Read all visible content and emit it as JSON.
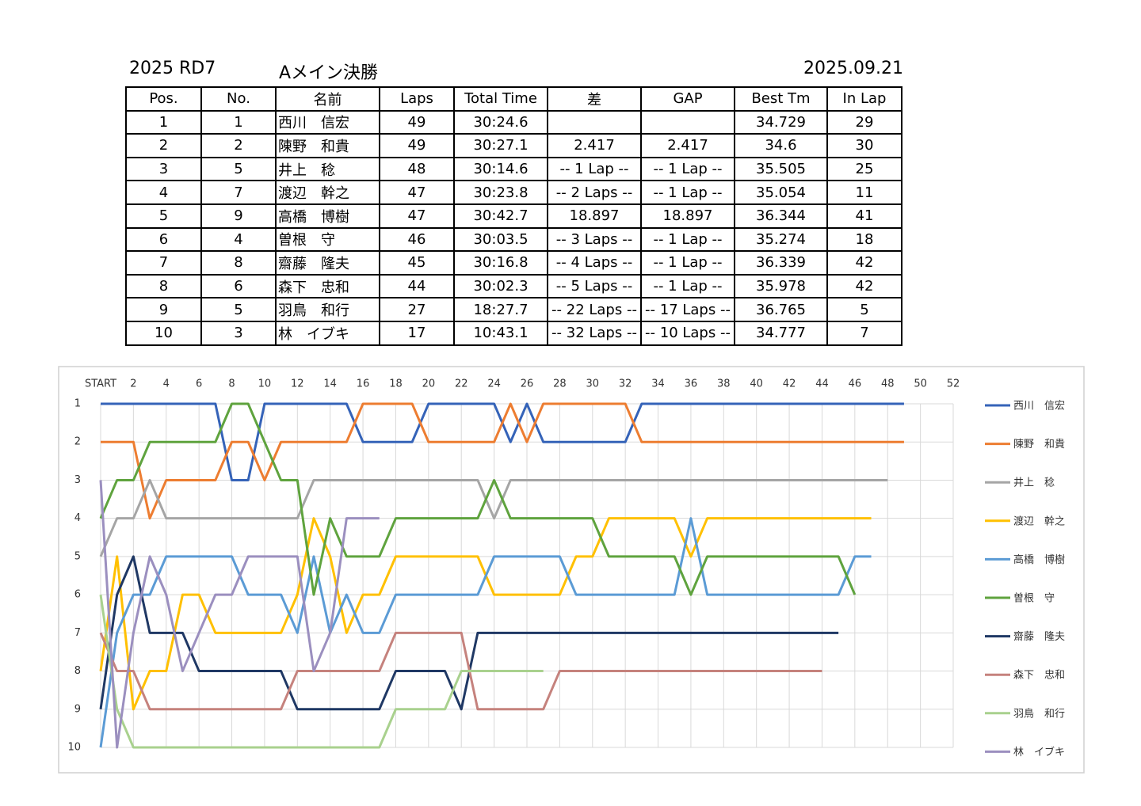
{
  "header": {
    "series": "2025 RD7",
    "race": "Aメイン決勝",
    "date": "2025.09.21"
  },
  "table": {
    "columns": [
      "Pos.",
      "No.",
      "名前",
      "Laps",
      "Total Time",
      "差",
      "GAP",
      "Best Tm",
      "In Lap"
    ],
    "rows": [
      [
        "1",
        "1",
        "西川　信宏",
        "49",
        "30:24.6",
        null,
        null,
        "34.729",
        "29"
      ],
      [
        "2",
        "2",
        "陳野　和貴",
        "49",
        "30:27.1",
        "2.417",
        "2.417",
        "34.6",
        "30"
      ],
      [
        "3",
        "5",
        "井上　稔",
        "48",
        "30:14.6",
        "-- 1 Lap --",
        "-- 1 Lap --",
        "35.505",
        "25"
      ],
      [
        "4",
        "7",
        "渡辺　幹之",
        "47",
        "30:23.8",
        "-- 2 Laps --",
        "-- 1 Lap --",
        "35.054",
        "11"
      ],
      [
        "5",
        "9",
        "高橋　博樹",
        "47",
        "30:42.7",
        "18.897",
        "18.897",
        "36.344",
        "41"
      ],
      [
        "6",
        "4",
        "曽根　守",
        "46",
        "30:03.5",
        "-- 3 Laps --",
        "-- 1 Lap --",
        "35.274",
        "18"
      ],
      [
        "7",
        "8",
        "齋藤　隆夫",
        "45",
        "30:16.8",
        "-- 4 Laps --",
        "-- 1 Lap --",
        "36.339",
        "42"
      ],
      [
        "8",
        "6",
        "森下　忠和",
        "44",
        "30:02.3",
        "-- 5 Laps --",
        "-- 1 Lap --",
        "35.978",
        "42"
      ],
      [
        "9",
        "5",
        "羽鳥　和行",
        "27",
        "18:27.7",
        "-- 22 Laps --",
        "-- 17 Laps --",
        "36.765",
        "5"
      ],
      [
        "10",
        "3",
        "林　イブキ",
        "17",
        "10:43.1",
        "-- 32 Laps --",
        "-- 10 Laps --",
        "34.777",
        "7"
      ]
    ]
  },
  "chart_data": {
    "type": "line",
    "x": [
      0,
      1,
      2,
      3,
      4,
      5,
      6,
      7,
      8,
      9,
      10,
      11,
      12,
      13,
      14,
      15,
      16,
      17,
      18,
      19,
      20,
      21,
      22,
      23,
      24,
      25,
      26,
      27,
      28,
      29,
      30,
      31,
      32,
      33,
      34,
      35,
      36,
      37,
      38,
      39,
      40,
      41,
      42,
      43,
      44,
      45,
      46,
      47,
      48,
      49
    ],
    "xlim": [
      0,
      52
    ],
    "xticks": [
      {
        "value": 0,
        "label": "START"
      },
      2,
      4,
      6,
      8,
      10,
      12,
      14,
      16,
      18,
      20,
      22,
      24,
      26,
      28,
      30,
      32,
      34,
      36,
      38,
      40,
      42,
      44,
      46,
      48,
      50,
      52
    ],
    "ylim": [
      1,
      10
    ],
    "y_inverted": true,
    "yticks": [
      1,
      2,
      3,
      4,
      5,
      6,
      7,
      8,
      9,
      10
    ],
    "grid": true,
    "legend": "right",
    "series": [
      {
        "name": "西川　信宏",
        "color": "#3563b8",
        "values": [
          1,
          1,
          1,
          1,
          1,
          1,
          1,
          1,
          3,
          3,
          1,
          1,
          1,
          1,
          1,
          1,
          2,
          2,
          2,
          2,
          1,
          1,
          1,
          1,
          1,
          2,
          1,
          2,
          2,
          2,
          2,
          2,
          2,
          1,
          1,
          1,
          1,
          1,
          1,
          1,
          1,
          1,
          1,
          1,
          1,
          1,
          1,
          1,
          1,
          1
        ]
      },
      {
        "name": "陳野　和貴",
        "color": "#ed7d31",
        "values": [
          2,
          2,
          2,
          4,
          3,
          3,
          3,
          3,
          2,
          2,
          3,
          2,
          2,
          2,
          2,
          2,
          1,
          1,
          1,
          1,
          2,
          2,
          2,
          2,
          2,
          1,
          2,
          1,
          1,
          1,
          1,
          1,
          1,
          2,
          2,
          2,
          2,
          2,
          2,
          2,
          2,
          2,
          2,
          2,
          2,
          2,
          2,
          2,
          2,
          2
        ]
      },
      {
        "name": "井上　稔",
        "color": "#a5a5a5",
        "values": [
          5,
          4,
          4,
          3,
          4,
          4,
          4,
          4,
          4,
          4,
          4,
          4,
          4,
          3,
          3,
          3,
          3,
          3,
          3,
          3,
          3,
          3,
          3,
          3,
          4,
          3,
          3,
          3,
          3,
          3,
          3,
          3,
          3,
          3,
          3,
          3,
          3,
          3,
          3,
          3,
          3,
          3,
          3,
          3,
          3,
          3,
          3,
          3,
          3,
          null
        ]
      },
      {
        "name": "渡辺　幹之",
        "color": "#ffc000",
        "values": [
          8,
          5,
          9,
          8,
          8,
          6,
          6,
          7,
          7,
          7,
          7,
          7,
          6,
          4,
          5,
          7,
          6,
          6,
          5,
          5,
          5,
          5,
          5,
          5,
          6,
          6,
          6,
          6,
          6,
          5,
          5,
          4,
          4,
          4,
          4,
          4,
          5,
          4,
          4,
          4,
          4,
          4,
          4,
          4,
          4,
          4,
          4,
          4,
          null,
          null
        ]
      },
      {
        "name": "高橋　博樹",
        "color": "#5b9bd5",
        "values": [
          10,
          7,
          6,
          6,
          5,
          5,
          5,
          5,
          5,
          6,
          6,
          6,
          7,
          5,
          7,
          6,
          7,
          7,
          6,
          6,
          6,
          6,
          6,
          6,
          5,
          5,
          5,
          5,
          5,
          6,
          6,
          6,
          6,
          6,
          6,
          6,
          4,
          6,
          6,
          6,
          6,
          6,
          6,
          6,
          6,
          6,
          5,
          5,
          null,
          null
        ]
      },
      {
        "name": "曽根　守",
        "color": "#5fa33e",
        "values": [
          4,
          3,
          3,
          2,
          2,
          2,
          2,
          2,
          1,
          1,
          2,
          3,
          3,
          6,
          4,
          5,
          5,
          5,
          4,
          4,
          4,
          4,
          4,
          4,
          3,
          4,
          4,
          4,
          4,
          4,
          4,
          5,
          5,
          5,
          5,
          5,
          6,
          5,
          5,
          5,
          5,
          5,
          5,
          5,
          5,
          5,
          6,
          null,
          null,
          null
        ]
      },
      {
        "name": "齋藤　隆夫",
        "color": "#1f3864",
        "values": [
          9,
          6,
          5,
          7,
          7,
          7,
          8,
          8,
          8,
          8,
          8,
          8,
          9,
          9,
          9,
          9,
          9,
          9,
          8,
          8,
          8,
          8,
          9,
          7,
          7,
          7,
          7,
          7,
          7,
          7,
          7,
          7,
          7,
          7,
          7,
          7,
          7,
          7,
          7,
          7,
          7,
          7,
          7,
          7,
          7,
          7,
          null,
          null,
          null,
          null
        ]
      },
      {
        "name": "森下　忠和",
        "color": "#c5827d",
        "values": [
          7,
          8,
          8,
          9,
          9,
          9,
          9,
          9,
          9,
          9,
          9,
          9,
          8,
          8,
          8,
          8,
          8,
          8,
          7,
          7,
          7,
          7,
          7,
          9,
          9,
          9,
          9,
          9,
          8,
          8,
          8,
          8,
          8,
          8,
          8,
          8,
          8,
          8,
          8,
          8,
          8,
          8,
          8,
          8,
          8,
          null,
          null,
          null,
          null,
          null
        ]
      },
      {
        "name": "羽鳥　和行",
        "color": "#a9d18e",
        "values": [
          6,
          9,
          10,
          10,
          10,
          10,
          10,
          10,
          10,
          10,
          10,
          10,
          10,
          10,
          10,
          10,
          10,
          10,
          9,
          9,
          9,
          9,
          8,
          8,
          8,
          8,
          8,
          8,
          null,
          null,
          null,
          null,
          null,
          null,
          null,
          null,
          null,
          null,
          null,
          null,
          null,
          null,
          null,
          null,
          null,
          null,
          null,
          null,
          null,
          null
        ]
      },
      {
        "name": "林　イブキ",
        "color": "#9b8fbf",
        "values": [
          3,
          10,
          7,
          5,
          6,
          8,
          7,
          6,
          6,
          5,
          5,
          5,
          5,
          8,
          7,
          4,
          4,
          4,
          null,
          null,
          null,
          null,
          null,
          null,
          null,
          null,
          null,
          null,
          null,
          null,
          null,
          null,
          null,
          null,
          null,
          null,
          null,
          null,
          null,
          null,
          null,
          null,
          null,
          null,
          null,
          null,
          null,
          null,
          null,
          null
        ]
      }
    ]
  }
}
